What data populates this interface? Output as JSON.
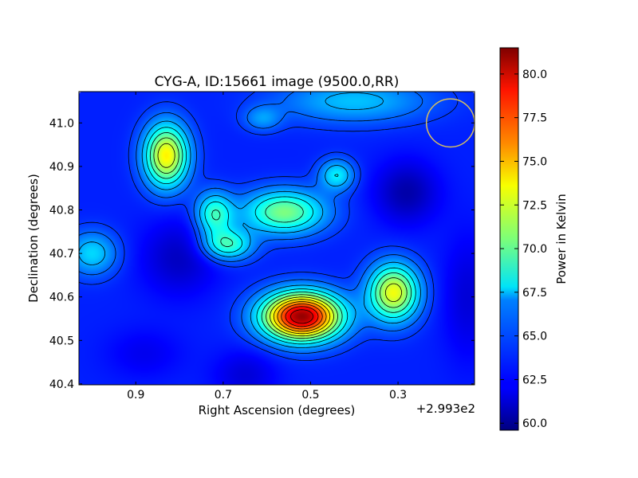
{
  "chart_data": {
    "type": "heatmap",
    "title": "CYG-A, ID:15661 image (9500.0,RR)",
    "xlabel": "Right Ascension (degrees)",
    "ylabel": "Declination (degrees)",
    "x_offset_label": "+2.993e2",
    "x_offset": 299.3,
    "xlim": [
      1.03,
      0.125
    ],
    "ylim": [
      40.398,
      41.072
    ],
    "x_ticks": [
      0.9,
      0.7,
      0.5,
      0.3
    ],
    "x_tick_labels": [
      "0.9",
      "0.7",
      "0.5",
      "0.3"
    ],
    "y_ticks": [
      40.4,
      40.5,
      40.6,
      40.7,
      40.8,
      40.9,
      41.0
    ],
    "y_tick_labels": [
      "40.4",
      "40.5",
      "40.6",
      "40.7",
      "40.8",
      "40.9",
      "41.0"
    ],
    "colorbar": {
      "label": "Power in Kelvin",
      "range": [
        59.6,
        81.5
      ],
      "ticks": [
        60.0,
        62.5,
        65.0,
        67.5,
        70.0,
        72.5,
        75.0,
        77.5,
        80.0
      ],
      "tick_labels": [
        "60.0",
        "62.5",
        "65.0",
        "67.5",
        "70.0",
        "72.5",
        "75.0",
        "77.5",
        "80.0"
      ],
      "colormap": "jet"
    },
    "background_level": 63.0,
    "sources": [
      {
        "ra": 0.52,
        "dec": 40.555,
        "peak": 81.0,
        "sigma_ra": 0.062,
        "sigma_dec": 0.038
      },
      {
        "ra": 0.31,
        "dec": 40.61,
        "peak": 73.0,
        "sigma_ra": 0.04,
        "sigma_dec": 0.045
      },
      {
        "ra": 0.83,
        "dec": 40.925,
        "peak": 73.5,
        "sigma_ra": 0.035,
        "sigma_dec": 0.05
      },
      {
        "ra": 0.56,
        "dec": 40.795,
        "peak": 70.5,
        "sigma_ra": 0.065,
        "sigma_dec": 0.035
      },
      {
        "ra": 0.72,
        "dec": 40.79,
        "peak": 69.0,
        "sigma_ra": 0.03,
        "sigma_dec": 0.035
      },
      {
        "ra": 0.69,
        "dec": 40.72,
        "peak": 69.0,
        "sigma_ra": 0.04,
        "sigma_dec": 0.025
      },
      {
        "ra": 0.44,
        "dec": 40.88,
        "peak": 67.5,
        "sigma_ra": 0.028,
        "sigma_dec": 0.025
      },
      {
        "ra": 1.0,
        "dec": 40.7,
        "peak": 67.0,
        "sigma_ra": 0.04,
        "sigma_dec": 0.035
      },
      {
        "ra": 0.4,
        "dec": 41.05,
        "peak": 66.5,
        "sigma_ra": 0.12,
        "sigma_dec": 0.035
      },
      {
        "ra": 0.61,
        "dec": 41.01,
        "peak": 65.5,
        "sigma_ra": 0.03,
        "sigma_dec": 0.02
      },
      {
        "ra": 0.8,
        "dec": 40.69,
        "peak": 61.0,
        "sigma_ra": 0.06,
        "sigma_dec": 0.06
      },
      {
        "ra": 0.28,
        "dec": 40.84,
        "peak": 60.5,
        "sigma_ra": 0.05,
        "sigma_dec": 0.05
      },
      {
        "ra": 0.65,
        "dec": 40.42,
        "peak": 61.5,
        "sigma_ra": 0.05,
        "sigma_dec": 0.04
      },
      {
        "ra": 0.14,
        "dec": 40.6,
        "peak": 61.5,
        "sigma_ra": 0.04,
        "sigma_dec": 0.1
      },
      {
        "ra": 0.88,
        "dec": 40.47,
        "peak": 62.0,
        "sigma_ra": 0.06,
        "sigma_dec": 0.04
      }
    ],
    "contour_levels": [
      63.5,
      64.5,
      66.0,
      67.5,
      69.0,
      70.5,
      72.0,
      73.5,
      75.0,
      76.5,
      78.0,
      79.5
    ],
    "beam": {
      "ra": 0.18,
      "dec": 41.0,
      "radius_ra": 0.055,
      "color": "#d8c060"
    },
    "grid": false
  }
}
